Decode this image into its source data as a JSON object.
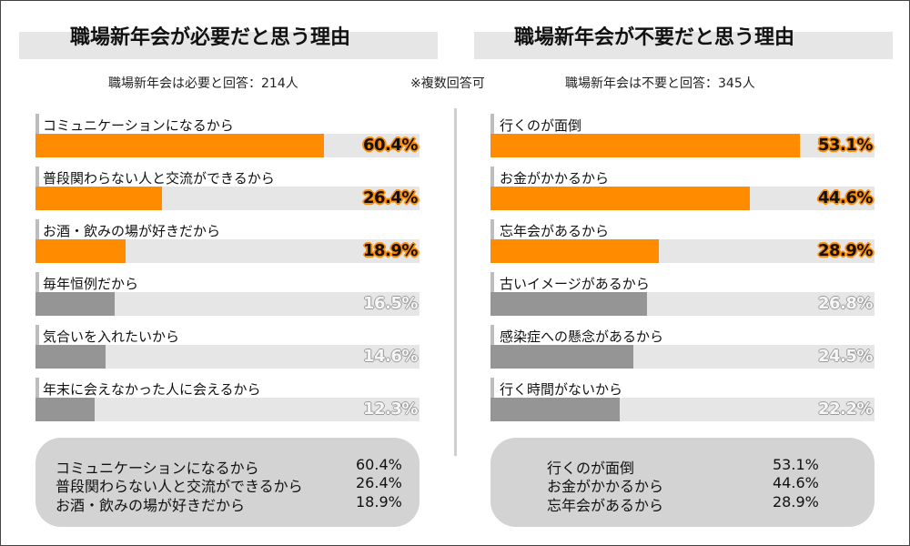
{
  "note": "※複数回答可",
  "colors": {
    "top": "#ff8c00",
    "rest": "#959595",
    "track": "#e6e6e6"
  },
  "chart_data": [
    {
      "type": "bar",
      "title": "職場新年会が必要だと思う理由",
      "subtitle": "職場新年会は必要と回答：214人",
      "categories": [
        "コミュニケーションになるから",
        "普段関わらない人と交流ができるから",
        "お酒・飲みの場が好きだから",
        "毎年恒例だから",
        "気合いを入れたいから",
        "年末に会えなかった人に会えるから"
      ],
      "values": [
        60.4,
        26.4,
        18.9,
        16.5,
        14.6,
        12.3
      ],
      "value_labels": [
        "60.4%",
        "26.4%",
        "18.9%",
        "16.5%",
        "14.6%",
        "12.3%"
      ],
      "highlight_top": 3,
      "unit": "%"
    },
    {
      "type": "bar",
      "title": "職場新年会が不要だと思う理由",
      "subtitle": "職場新年会は不要と回答：345人",
      "categories": [
        "行くのが面倒",
        "お金がかかるから",
        "忘年会があるから",
        "古いイメージがあるから",
        "感染症への懸念があるから",
        "行く時間がないから"
      ],
      "values": [
        53.1,
        44.6,
        28.9,
        26.8,
        24.5,
        22.2
      ],
      "value_labels": [
        "53.1%",
        "44.6%",
        "28.9%",
        "26.8%",
        "24.5%",
        "22.2%"
      ],
      "highlight_top": 3,
      "unit": "%"
    }
  ],
  "summary_left": [
    {
      "label": "コミュニケーションになるから",
      "value": "60.4%"
    },
    {
      "label": "普段関わらない人と交流ができるから",
      "value": "26.4%"
    },
    {
      "label": "お酒・飲みの場が好きだから",
      "value": "18.9%"
    }
  ],
  "summary_right": [
    {
      "label": "行くのが面倒",
      "value": "53.1%"
    },
    {
      "label": "お金がかかるから",
      "value": "44.6%"
    },
    {
      "label": "忘年会があるから",
      "value": "28.9%"
    }
  ]
}
